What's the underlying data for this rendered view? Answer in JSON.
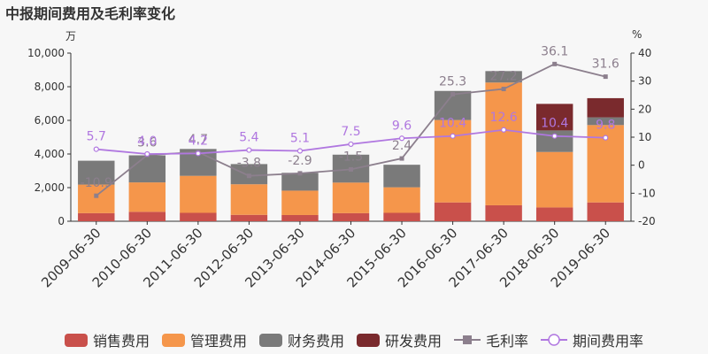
{
  "title": "中报期间费用及毛利率变化",
  "left_unit": "万",
  "right_unit": "%",
  "colors": {
    "sales": "#c9504b",
    "admin": "#f5964b",
    "finance": "#7a7a7a",
    "rd": "#7a2a2d",
    "gross": "#8c7f8d",
    "period": "#b077e0"
  },
  "chart_data": {
    "type": "bar",
    "stacked": true,
    "categories": [
      "2009-06-30",
      "2010-06-30",
      "2011-06-30",
      "2012-06-30",
      "2013-06-30",
      "2014-06-30",
      "2015-06-30",
      "2016-06-30",
      "2017-06-30",
      "2018-06-30",
      "2019-06-30"
    ],
    "series": [
      {
        "name": "销售费用",
        "axis": "left",
        "values": [
          480,
          560,
          500,
          380,
          370,
          480,
          500,
          1120,
          950,
          820,
          1120
        ]
      },
      {
        "name": "管理费用",
        "axis": "left",
        "values": [
          1700,
          1750,
          2200,
          1820,
          1450,
          1820,
          1520,
          4900,
          7300,
          3300,
          4600
        ]
      },
      {
        "name": "财务费用",
        "axis": "left",
        "values": [
          1420,
          1610,
          1600,
          1200,
          1060,
          1660,
          1340,
          1730,
          680,
          1280,
          460
        ]
      },
      {
        "name": "研发费用",
        "axis": "left",
        "values": [
          0,
          0,
          0,
          0,
          0,
          0,
          0,
          0,
          0,
          1580,
          1140
        ]
      }
    ],
    "lines": [
      {
        "name": "毛利率",
        "axis": "right",
        "values": [
          -10.9,
          3.6,
          4.7,
          -3.8,
          -2.9,
          -1.5,
          2.4,
          25.3,
          27.2,
          36.1,
          31.6
        ],
        "labels": [
          "-10.9",
          "3.6",
          "4.7",
          "-3.8",
          "-2.9",
          "-1.5",
          "2.4",
          "25.3",
          "27.2",
          "36.1",
          "31.6"
        ]
      },
      {
        "name": "期间费用率",
        "axis": "right",
        "values": [
          5.7,
          4.0,
          4.2,
          5.4,
          5.1,
          7.5,
          9.6,
          10.4,
          12.6,
          10.4,
          9.8
        ],
        "labels": [
          "5.7",
          "4.0",
          "4.2",
          "5.4",
          "5.1",
          "7.5",
          "9.6",
          "10.4",
          "12.6",
          "10.4",
          "9.8"
        ]
      }
    ],
    "y_left": {
      "min": 0,
      "max": 10000,
      "ticks": [
        0,
        2000,
        4000,
        6000,
        8000,
        10000
      ],
      "tick_labels": [
        "0",
        "2,000",
        "4,000",
        "6,000",
        "8,000",
        "10,000"
      ]
    },
    "y_right": {
      "min": -20,
      "max": 40,
      "ticks": [
        -20,
        -10,
        0,
        10,
        20,
        30,
        40
      ],
      "tick_labels": [
        "-20",
        "-10",
        "0",
        "10",
        "20",
        "30",
        "40"
      ]
    },
    "legend_position": "bottom"
  }
}
